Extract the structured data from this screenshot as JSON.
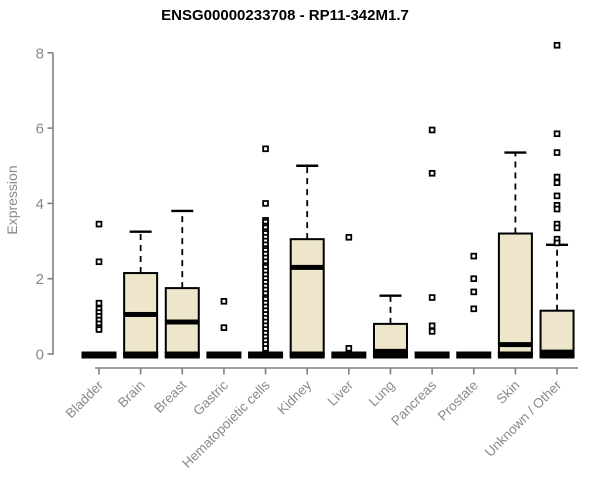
{
  "chart_data": {
    "type": "boxplot",
    "title": "ENSG00000233708 - RP11-342M1.7",
    "ylabel": "Expression",
    "xlabel": "",
    "ylim": [
      0,
      8.4
    ],
    "yticks": [
      0,
      2,
      4,
      6,
      8
    ],
    "grid": false,
    "legend": null,
    "categories": [
      "Bladder",
      "Brain",
      "Breast",
      "Gastric",
      "Hematopoietic cells",
      "Kidney",
      "Liver",
      "Lung",
      "Pancreas",
      "Prostate",
      "Skin",
      "Unknown / Other"
    ],
    "series": [
      {
        "category": "Bladder",
        "flat": true,
        "q1": 0,
        "median": 0,
        "q3": 0.05,
        "whisker_low": 0,
        "whisker_high": 0.05,
        "outliers": [
          3.45,
          2.45,
          1.35,
          1.2,
          1.1,
          1.0,
          0.9,
          0.8,
          0.7,
          0.65
        ]
      },
      {
        "category": "Brain",
        "flat": false,
        "q1": 0,
        "median": 1.05,
        "q3": 2.15,
        "whisker_low": 0,
        "whisker_high": 3.25,
        "outliers": []
      },
      {
        "category": "Breast",
        "flat": false,
        "q1": 0,
        "median": 0.85,
        "q3": 1.75,
        "whisker_low": 0,
        "whisker_high": 3.8,
        "outliers": []
      },
      {
        "category": "Gastric",
        "flat": true,
        "q1": 0,
        "median": 0,
        "q3": 0.05,
        "whisker_low": 0,
        "whisker_high": 0.05,
        "outliers": [
          1.4,
          0.7
        ]
      },
      {
        "category": "Hematopoietic cells",
        "flat": true,
        "q1": 0,
        "median": 0,
        "q3": 0.05,
        "whisker_low": 0,
        "whisker_high": 0.05,
        "outliers": [
          5.45,
          4.0,
          3.55,
          3.5,
          3.4,
          3.35,
          3.25,
          3.2,
          3.1,
          3.0,
          2.9,
          2.8,
          2.75,
          2.65,
          2.55,
          2.45,
          2.35,
          2.3,
          2.2,
          2.1,
          2.0,
          1.9,
          1.8,
          1.7,
          1.6,
          1.5,
          1.45,
          1.35,
          1.25,
          1.15,
          1.05,
          0.95,
          0.85,
          0.75,
          0.65,
          0.55,
          0.45,
          0.35,
          0.25,
          0.15
        ]
      },
      {
        "category": "Kidney",
        "flat": false,
        "q1": 0,
        "median": 2.3,
        "q3": 3.05,
        "whisker_low": 0,
        "whisker_high": 5.0,
        "outliers": []
      },
      {
        "category": "Liver",
        "flat": true,
        "q1": 0,
        "median": 0,
        "q3": 0.05,
        "whisker_low": 0,
        "whisker_high": 0.05,
        "outliers": [
          3.1,
          0.15
        ]
      },
      {
        "category": "Lung",
        "flat": false,
        "q1": 0,
        "median": 0.07,
        "q3": 0.8,
        "whisker_low": 0,
        "whisker_high": 1.55,
        "outliers": []
      },
      {
        "category": "Pancreas",
        "flat": true,
        "q1": 0,
        "median": 0,
        "q3": 0.05,
        "whisker_low": 0,
        "whisker_high": 0.05,
        "outliers": [
          5.95,
          4.8,
          1.5,
          0.75,
          0.6
        ]
      },
      {
        "category": "Prostate",
        "flat": true,
        "q1": 0,
        "median": 0,
        "q3": 0.05,
        "whisker_low": 0,
        "whisker_high": 0.05,
        "outliers": [
          2.6,
          2.0,
          1.65,
          1.2
        ]
      },
      {
        "category": "Skin",
        "flat": false,
        "q1": 0,
        "median": 0.25,
        "q3": 3.2,
        "whisker_low": 0,
        "whisker_high": 5.35,
        "outliers": []
      },
      {
        "category": "Unknown / Other",
        "flat": false,
        "q1": 0,
        "median": 0.05,
        "q3": 1.15,
        "whisker_low": 0,
        "whisker_high": 2.9,
        "outliers": [
          8.2,
          5.85,
          5.35,
          4.7,
          4.55,
          4.2,
          3.95,
          3.85,
          3.45,
          3.35,
          3.05,
          2.95
        ]
      }
    ],
    "colors": {
      "background": "#FFFFFF",
      "box_fill": "#EDE6CA",
      "box_stroke": "#000000",
      "median": "#000000",
      "whisker": "#000000",
      "outlier": "#000000",
      "axis": "#808080",
      "tick_label": "#8A8A8A",
      "title": "#000000"
    }
  }
}
